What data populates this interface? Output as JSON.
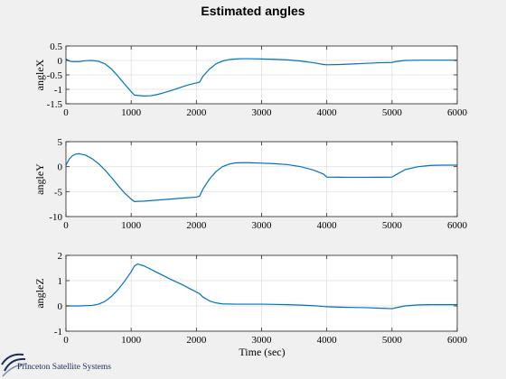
{
  "figure": {
    "title": "Estimated angles",
    "xlabel": "Time (sec)",
    "logo_text": "Princeton Satellite Systems"
  },
  "colors": {
    "background": "#f0f0f0",
    "axes_bg": "#ffffff",
    "grid": "#dcdcdc",
    "line": "#0072bd",
    "logo": "#1a2a5a"
  },
  "chart_data": [
    {
      "type": "line",
      "ylabel": "angleX",
      "xlim": [
        0,
        6000
      ],
      "ylim": [
        -1.5,
        0.5
      ],
      "xticks": [
        0,
        1000,
        2000,
        3000,
        4000,
        5000,
        6000
      ],
      "yticks": [
        -1.5,
        -1,
        -0.5,
        0,
        0.5
      ],
      "ytick_labels": [
        "-1.5",
        "-1",
        "-0.5",
        "0",
        "0.5"
      ],
      "grid": true,
      "series": [
        {
          "x": [
            0,
            50,
            100,
            200,
            300,
            400,
            500,
            600,
            700,
            800,
            900,
            1000,
            1050,
            1100,
            1200,
            1300,
            1400,
            1500,
            1600,
            1700,
            1800,
            1900,
            2000,
            2050,
            2100,
            2200,
            2300,
            2400,
            2500,
            2600,
            2700,
            2800,
            3000,
            3200,
            3400,
            3600,
            3800,
            3950,
            4000,
            4200,
            4400,
            4600,
            4800,
            5000,
            5050,
            5200,
            5400,
            5600,
            5800,
            6000
          ],
          "y": [
            0.05,
            -0.02,
            -0.04,
            -0.04,
            -0.01,
            0.0,
            -0.03,
            -0.12,
            -0.3,
            -0.55,
            -0.82,
            -1.08,
            -1.2,
            -1.21,
            -1.23,
            -1.22,
            -1.18,
            -1.12,
            -1.05,
            -0.98,
            -0.9,
            -0.83,
            -0.78,
            -0.75,
            -0.55,
            -0.3,
            -0.12,
            -0.02,
            0.03,
            0.05,
            0.06,
            0.06,
            0.05,
            0.04,
            0.02,
            -0.02,
            -0.08,
            -0.14,
            -0.15,
            -0.14,
            -0.12,
            -0.1,
            -0.08,
            -0.07,
            -0.04,
            0.0,
            0.01,
            0.01,
            0.01,
            0.01
          ]
        }
      ]
    },
    {
      "type": "line",
      "ylabel": "angleY",
      "xlim": [
        0,
        6000
      ],
      "ylim": [
        -10,
        5
      ],
      "xticks": [
        0,
        1000,
        2000,
        3000,
        4000,
        5000,
        6000
      ],
      "yticks": [
        -10,
        -5,
        0,
        5
      ],
      "ytick_labels": [
        "-10",
        "-5",
        "0",
        "5"
      ],
      "grid": true,
      "series": [
        {
          "x": [
            0,
            50,
            100,
            150,
            200,
            300,
            400,
            500,
            600,
            700,
            800,
            900,
            1000,
            1050,
            1100,
            1200,
            1400,
            1600,
            1800,
            2000,
            2050,
            2100,
            2200,
            2300,
            2400,
            2500,
            2600,
            2700,
            2800,
            3000,
            3200,
            3400,
            3600,
            3800,
            3950,
            4000,
            4200,
            4400,
            4600,
            4800,
            5000,
            5050,
            5200,
            5400,
            5600,
            5800,
            6000
          ],
          "y": [
            0.3,
            1.5,
            2.2,
            2.5,
            2.6,
            2.3,
            1.6,
            0.6,
            -0.7,
            -2.2,
            -3.8,
            -5.3,
            -6.5,
            -7.0,
            -6.95,
            -6.9,
            -6.7,
            -6.5,
            -6.3,
            -6.1,
            -5.9,
            -4.5,
            -2.5,
            -1.0,
            0.0,
            0.5,
            0.75,
            0.8,
            0.8,
            0.7,
            0.6,
            0.4,
            0.0,
            -0.7,
            -1.5,
            -2.1,
            -2.12,
            -2.13,
            -2.13,
            -2.12,
            -2.1,
            -1.7,
            -0.6,
            0.0,
            0.25,
            0.3,
            0.3
          ]
        }
      ]
    },
    {
      "type": "line",
      "ylabel": "angleZ",
      "xlim": [
        0,
        6000
      ],
      "ylim": [
        -1,
        2
      ],
      "xticks": [
        0,
        1000,
        2000,
        3000,
        4000,
        5000,
        6000
      ],
      "yticks": [
        -1,
        0,
        1,
        2
      ],
      "ytick_labels": [
        "-1",
        "0",
        "1",
        "2"
      ],
      "grid": true,
      "series": [
        {
          "x": [
            0,
            200,
            400,
            500,
            600,
            700,
            800,
            900,
            1000,
            1050,
            1100,
            1200,
            1400,
            1600,
            1800,
            1900,
            2000,
            2050,
            2100,
            2200,
            2300,
            2400,
            2600,
            2800,
            3000,
            3200,
            3400,
            3600,
            3800,
            3950,
            4000,
            4200,
            4400,
            4600,
            4800,
            5000,
            5050,
            5200,
            5400,
            5600,
            5800,
            6000
          ],
          "y": [
            0.0,
            0.0,
            0.02,
            0.07,
            0.18,
            0.38,
            0.65,
            0.98,
            1.35,
            1.58,
            1.66,
            1.58,
            1.32,
            1.06,
            0.82,
            0.68,
            0.55,
            0.48,
            0.35,
            0.2,
            0.12,
            0.08,
            0.07,
            0.07,
            0.07,
            0.06,
            0.05,
            0.03,
            0.01,
            -0.02,
            -0.03,
            -0.05,
            -0.06,
            -0.07,
            -0.09,
            -0.11,
            -0.08,
            0.0,
            0.04,
            0.05,
            0.05,
            0.05
          ]
        }
      ]
    }
  ]
}
